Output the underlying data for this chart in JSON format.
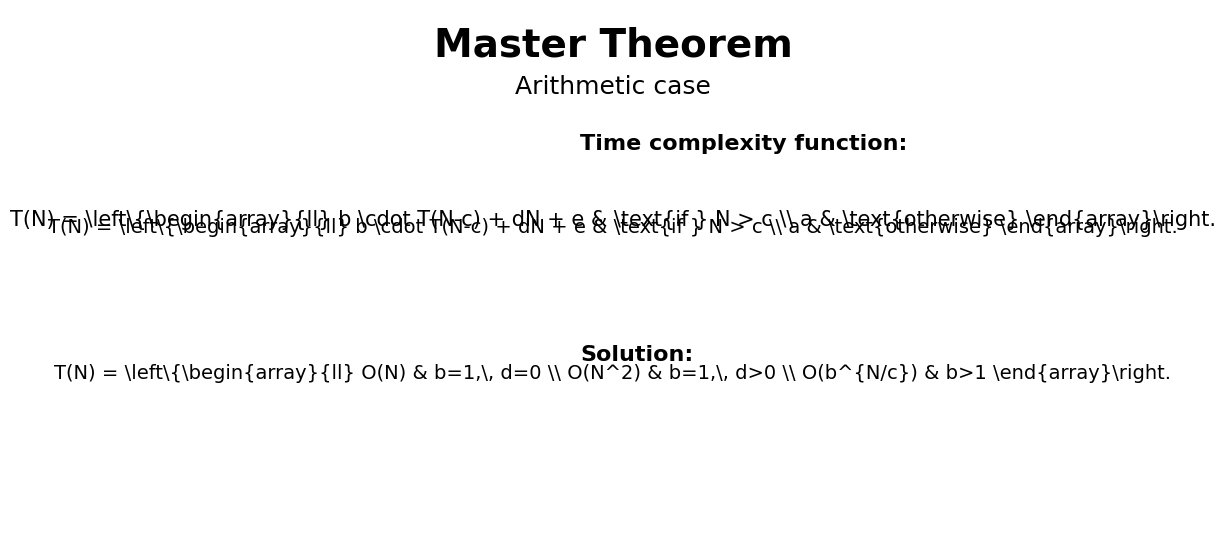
{
  "title": "Master Theorem",
  "subtitle": "Arithmetic case",
  "title_fontsize": 28,
  "subtitle_fontsize": 18,
  "background_color": "#ffffff",
  "text_color": "#000000",
  "section1_label": "Time complexity function:",
  "section2_label": "Solution:",
  "section1_label_fontsize": 16,
  "section2_label_fontsize": 16,
  "formula1": "T(N) = \\left\\{\\begin{array}{ll} b \\cdot T(N-c) + dN + e & \\text{if } N > c \\\\ a & \\text{otherwise} \\end{array}\\right.",
  "formula2": "T(N) = \\left\\{\\begin{array}{ll} O(N) & b=1,\\, d=0 \\\\ O(N^2) & b=1,\\, d>0 \\\\ O(b^{N/c}) & b>1 \\end{array}\\right."
}
